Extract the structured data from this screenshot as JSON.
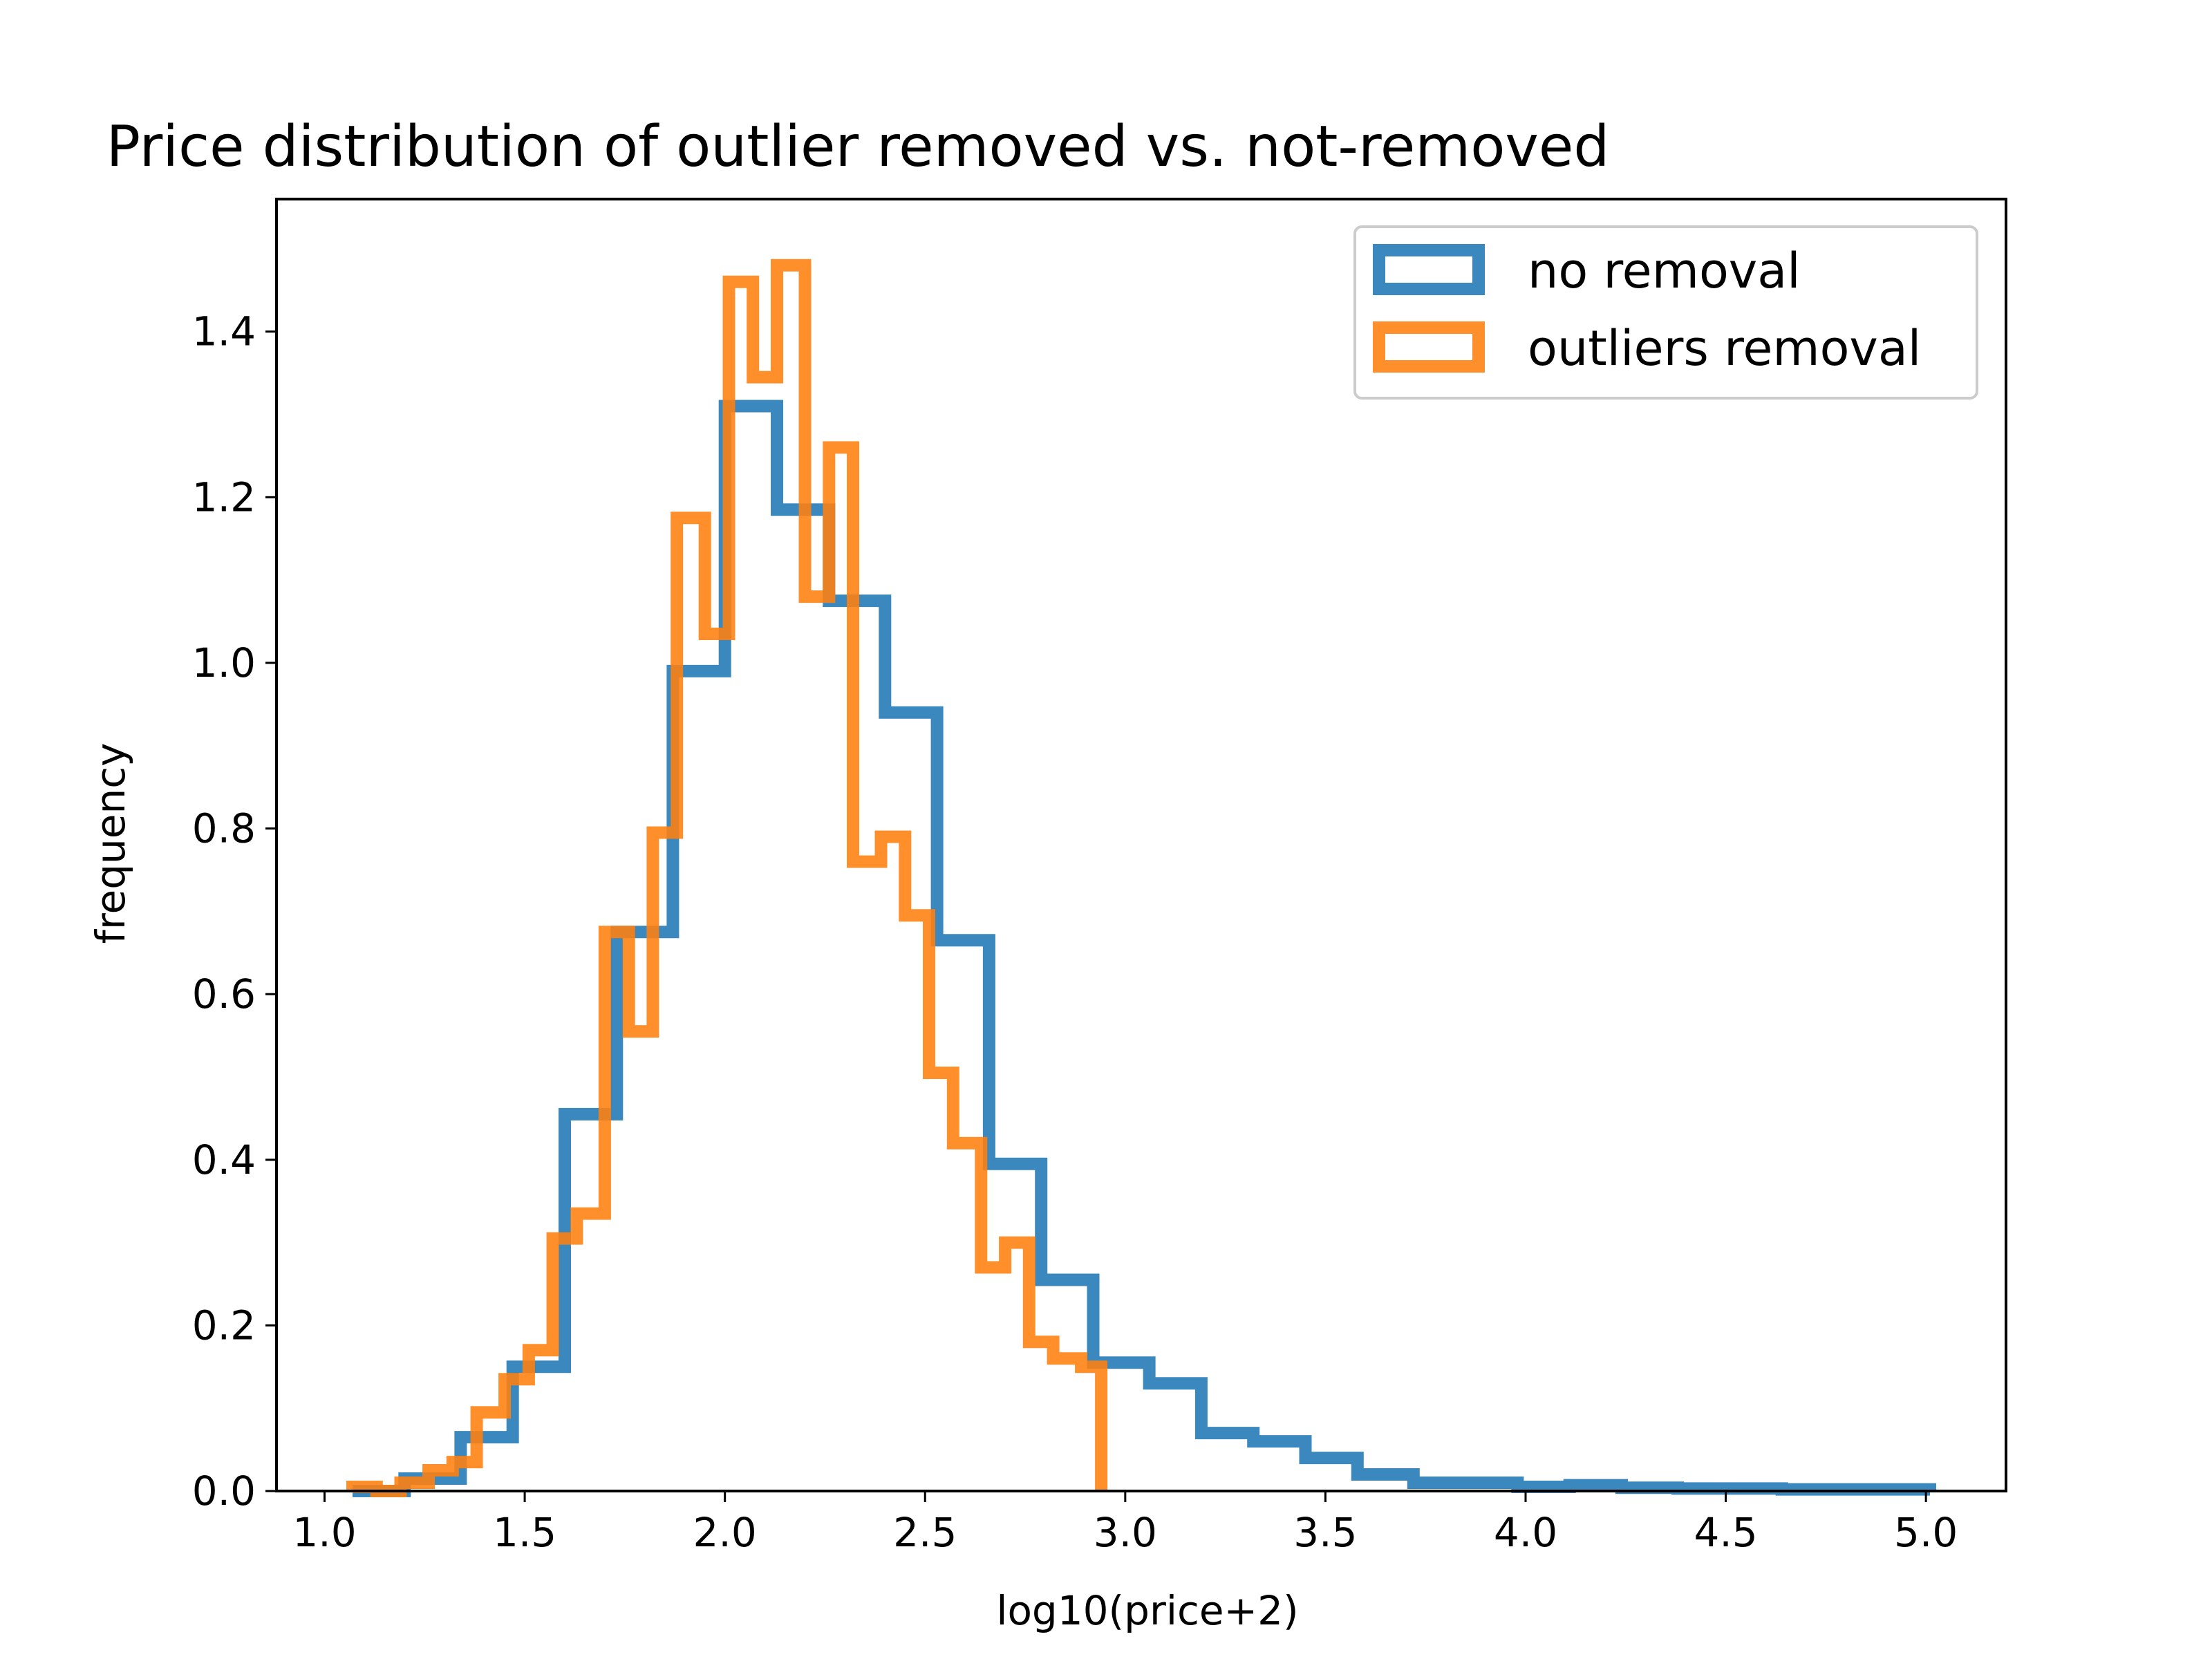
{
  "chart_data": {
    "type": "histogram-step",
    "title": "Price distribution of outlier removed vs. not-removed",
    "xlabel": "log10(price+2)",
    "ylabel": "frequency",
    "xlim": [
      0.88,
      5.2
    ],
    "ylim": [
      0.0,
      1.56
    ],
    "x_ticks": [
      "1.0",
      "1.5",
      "2.0",
      "2.5",
      "3.0",
      "3.5",
      "4.0",
      "4.5",
      "5.0"
    ],
    "y_ticks": [
      "0.0",
      "0.2",
      "0.4",
      "0.6",
      "0.8",
      "1.0",
      "1.2",
      "1.4"
    ],
    "grid": false,
    "legend_position": "upper right",
    "legend": [
      "no removal",
      "outliers removal"
    ],
    "series": [
      {
        "name": "no removal",
        "color": "#1f77b4",
        "bin_edges": [
          1.07,
          1.2,
          1.34,
          1.47,
          1.6,
          1.73,
          1.87,
          2.0,
          2.13,
          2.26,
          2.4,
          2.53,
          2.66,
          2.79,
          2.92,
          3.06,
          3.19,
          3.32,
          3.45,
          3.58,
          3.72,
          3.85,
          3.98,
          4.11,
          4.24,
          4.38,
          4.51,
          4.64,
          4.77,
          5.01
        ],
        "values": [
          0.0,
          0.015,
          0.065,
          0.15,
          0.455,
          0.675,
          0.99,
          1.31,
          1.185,
          1.075,
          0.94,
          0.665,
          0.395,
          0.255,
          0.155,
          0.13,
          0.07,
          0.06,
          0.04,
          0.02,
          0.01,
          0.01,
          0.005,
          0.007,
          0.004,
          0.003,
          0.003,
          0.002,
          0.002
        ]
      },
      {
        "name": "outliers removal",
        "color": "#ff7f0e",
        "bin_edges": [
          1.07,
          1.13,
          1.19,
          1.26,
          1.32,
          1.38,
          1.45,
          1.51,
          1.57,
          1.63,
          1.7,
          1.76,
          1.82,
          1.88,
          1.95,
          2.01,
          2.07,
          2.13,
          2.2,
          2.26,
          2.32,
          2.39,
          2.45,
          2.51,
          2.57,
          2.64,
          2.7,
          2.76,
          2.82,
          2.89,
          2.94
        ],
        "values": [
          0.005,
          0.0,
          0.01,
          0.025,
          0.035,
          0.095,
          0.135,
          0.17,
          0.305,
          0.335,
          0.675,
          0.555,
          0.795,
          1.175,
          1.035,
          1.46,
          1.345,
          1.48,
          1.08,
          1.26,
          0.76,
          0.79,
          0.695,
          0.505,
          0.42,
          0.27,
          0.3,
          0.18,
          0.16,
          0.15
        ]
      }
    ]
  }
}
